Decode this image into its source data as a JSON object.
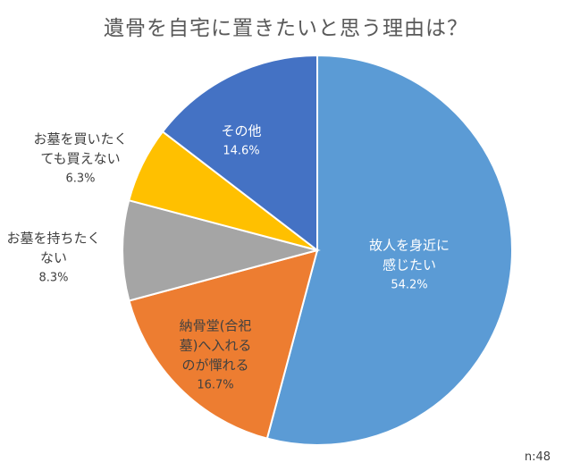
{
  "chart_data": {
    "type": "pie",
    "title": "遺骨を自宅に置きたいと思う理由は？",
    "note": "n:48",
    "slices": [
      {
        "lines": [
          "故人を身近に",
          "感じたい"
        ],
        "pct": "54.2%",
        "value": 54.2,
        "color": "#5b9bd5",
        "text_color": "#ffffff"
      },
      {
        "lines": [
          "納骨堂(合祀",
          "墓)へ入れる",
          "のが憚れる"
        ],
        "pct": "16.7%",
        "value": 16.7,
        "color": "#ed7d31",
        "text_color": "#404040"
      },
      {
        "lines": [
          "お墓を持ちたく",
          "ない"
        ],
        "pct": "8.3%",
        "value": 8.3,
        "color": "#a5a5a5",
        "text_color": "#404040"
      },
      {
        "lines": [
          "お墓を買いたく",
          "ても買えない"
        ],
        "pct": "6.3%",
        "value": 6.3,
        "color": "#ffc000",
        "text_color": "#404040"
      },
      {
        "lines": [
          "その他"
        ],
        "pct": "14.6%",
        "value": 14.6,
        "color": "#4472c4",
        "text_color": "#ffffff"
      }
    ]
  }
}
